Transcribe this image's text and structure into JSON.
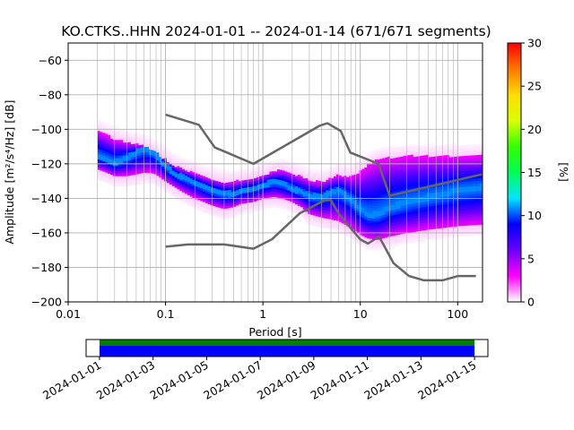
{
  "title": "KO.CTKS..HHN   2024-01-01 -- 2024-01-14  (671/671 segments)",
  "chart_data": [
    {
      "type": "heatmap",
      "title": "KO.CTKS..HHN   2024-01-01 -- 2024-01-14  (671/671 segments)",
      "xlabel": "Period [s]",
      "ylabel": "Amplitude [m²/s⁴/Hz] [dB]",
      "x_scale": "log",
      "xlim": [
        0.01,
        180
      ],
      "ylim": [
        -200,
        -50
      ],
      "x_ticks": [
        0.01,
        0.1,
        1,
        10,
        100
      ],
      "x_tick_labels": [
        "0.01",
        "0.1",
        "1",
        "10",
        "100"
      ],
      "y_ticks": [
        -200,
        -180,
        -160,
        -140,
        -120,
        -100,
        -80,
        -60
      ],
      "y_tick_labels": [
        "−200",
        "−180",
        "−160",
        "−140",
        "−120",
        "−100",
        "−80",
        "−60"
      ],
      "grid": true,
      "colorbar": {
        "label": "[%]",
        "range": [
          0,
          30
        ],
        "ticks": [
          0,
          5,
          10,
          15,
          20,
          25,
          30
        ],
        "colormap": [
          "#ffffff",
          "#ff00ff",
          "#6a00ff",
          "#0000ff",
          "#00e5ff",
          "#00ff55",
          "#35ff00",
          "#d9ff00",
          "#ffdd00",
          "#ff7700",
          "#ff0000"
        ]
      },
      "mode_curve": {
        "period": [
          0.02,
          0.025,
          0.03,
          0.04,
          0.05,
          0.06,
          0.07,
          0.08,
          0.1,
          0.13,
          0.16,
          0.2,
          0.25,
          0.3,
          0.4,
          0.5,
          0.6,
          0.8,
          1,
          1.3,
          1.6,
          2,
          2.5,
          3,
          4,
          5,
          6,
          8,
          10,
          12,
          15,
          20,
          30,
          50,
          100,
          180
        ],
        "db": [
          -116,
          -118,
          -120,
          -117,
          -114,
          -112,
          -113,
          -115,
          -122,
          -127,
          -129,
          -131,
          -134,
          -136,
          -138,
          -138,
          -136,
          -135,
          -133,
          -131,
          -132,
          -135,
          -137,
          -139,
          -140,
          -137,
          -136,
          -141,
          -147,
          -150,
          -150,
          -146,
          -143,
          -140,
          -136,
          -134
        ],
        "upper_db": [
          -101,
          -104,
          -106,
          -108,
          -109,
          -110,
          -112,
          -114,
          -118,
          -122,
          -124,
          -126,
          -128,
          -129,
          -131,
          -131,
          -130,
          -129,
          -127,
          -125,
          -124,
          -126,
          -128,
          -130,
          -131,
          -129,
          -127,
          -128,
          -125,
          -121,
          -118,
          -117,
          -116,
          -116,
          -116,
          -116
        ],
        "lower_db": [
          -124,
          -126,
          -128,
          -128,
          -127,
          -126,
          -126,
          -127,
          -131,
          -135,
          -138,
          -141,
          -143,
          -145,
          -147,
          -146,
          -144,
          -143,
          -141,
          -140,
          -141,
          -143,
          -146,
          -150,
          -152,
          -153,
          -154,
          -158,
          -162,
          -164,
          -165,
          -163,
          -161,
          -159,
          -157,
          -156
        ]
      },
      "noise_models": [
        {
          "model": "NHNM",
          "period": [
            0.1,
            0.22,
            0.32,
            0.8,
            3.8,
            4.6,
            6.3,
            7.9,
            15.4,
            20,
            354.8
          ],
          "db": [
            -91.5,
            -97.4,
            -110.5,
            -120,
            -98,
            -96.5,
            -101,
            -113.5,
            -120,
            -138.5,
            -126
          ]
        },
        {
          "model": "NLNM",
          "period": [
            0.1,
            0.17,
            0.4,
            0.8,
            1.24,
            2.4,
            4.3,
            5,
            6,
            10,
            12,
            15.6,
            21.9,
            31.6,
            45,
            70,
            101,
            154
          ],
          "db": [
            -168,
            -166.7,
            -166.7,
            -169.2,
            -163.7,
            -148.6,
            -141.1,
            -141.1,
            -149,
            -163.8,
            -166.2,
            -162.1,
            -177.5,
            -185,
            -187.5,
            -187.5,
            -185,
            -185
          ]
        }
      ]
    },
    {
      "type": "timeline",
      "x_ticks": [
        "2024-01-01",
        "2024-01-03",
        "2024-01-05",
        "2024-01-07",
        "2024-01-09",
        "2024-01-11",
        "2024-01-13",
        "2024-01-15"
      ],
      "range": [
        "2023-12-31 12:00",
        "2024-01-15 12:00"
      ],
      "data_coverage": [
        "2024-01-01",
        "2024-01-15"
      ],
      "colors": {
        "segments": "#008000",
        "data": "#0000ff"
      }
    }
  ]
}
